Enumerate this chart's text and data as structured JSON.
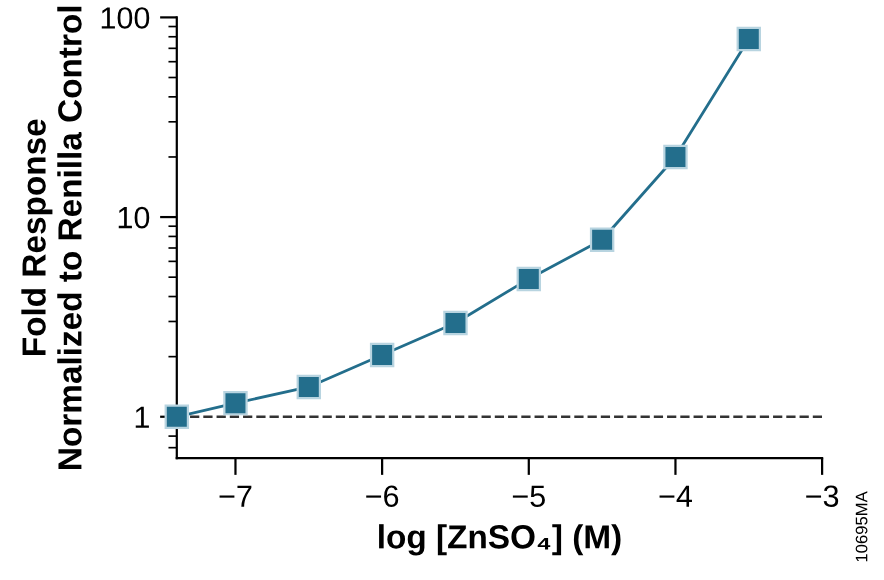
{
  "chart_data": {
    "type": "line",
    "xlabel": "log [ZnSO₄] (M)",
    "ylabel": "Fold Response\nNormalized to Renilla Control",
    "x": [
      -7.4,
      -7,
      -6.5,
      -6,
      -5.5,
      -5,
      -4.5,
      -4,
      -3.5
    ],
    "series": [
      {
        "color": "#236e8c",
        "values": [
          1.0,
          1.17,
          1.41,
          2.04,
          2.95,
          4.9,
          7.7,
          20,
          78
        ]
      }
    ],
    "marker": "square",
    "line_style": "solid",
    "log": "y",
    "xlim": [
      -7.4,
      -3
    ],
    "xticks": [
      -7,
      -6,
      -5,
      -4,
      -3
    ],
    "ylim": [
      0.62,
      100
    ],
    "yticks": [
      1,
      10,
      100
    ],
    "ref_lines": [
      {
        "axis": "y",
        "value": 1,
        "line_style": "dashed",
        "color": "#333333"
      }
    ],
    "grid": false,
    "annotations": [
      "10695MA"
    ]
  }
}
